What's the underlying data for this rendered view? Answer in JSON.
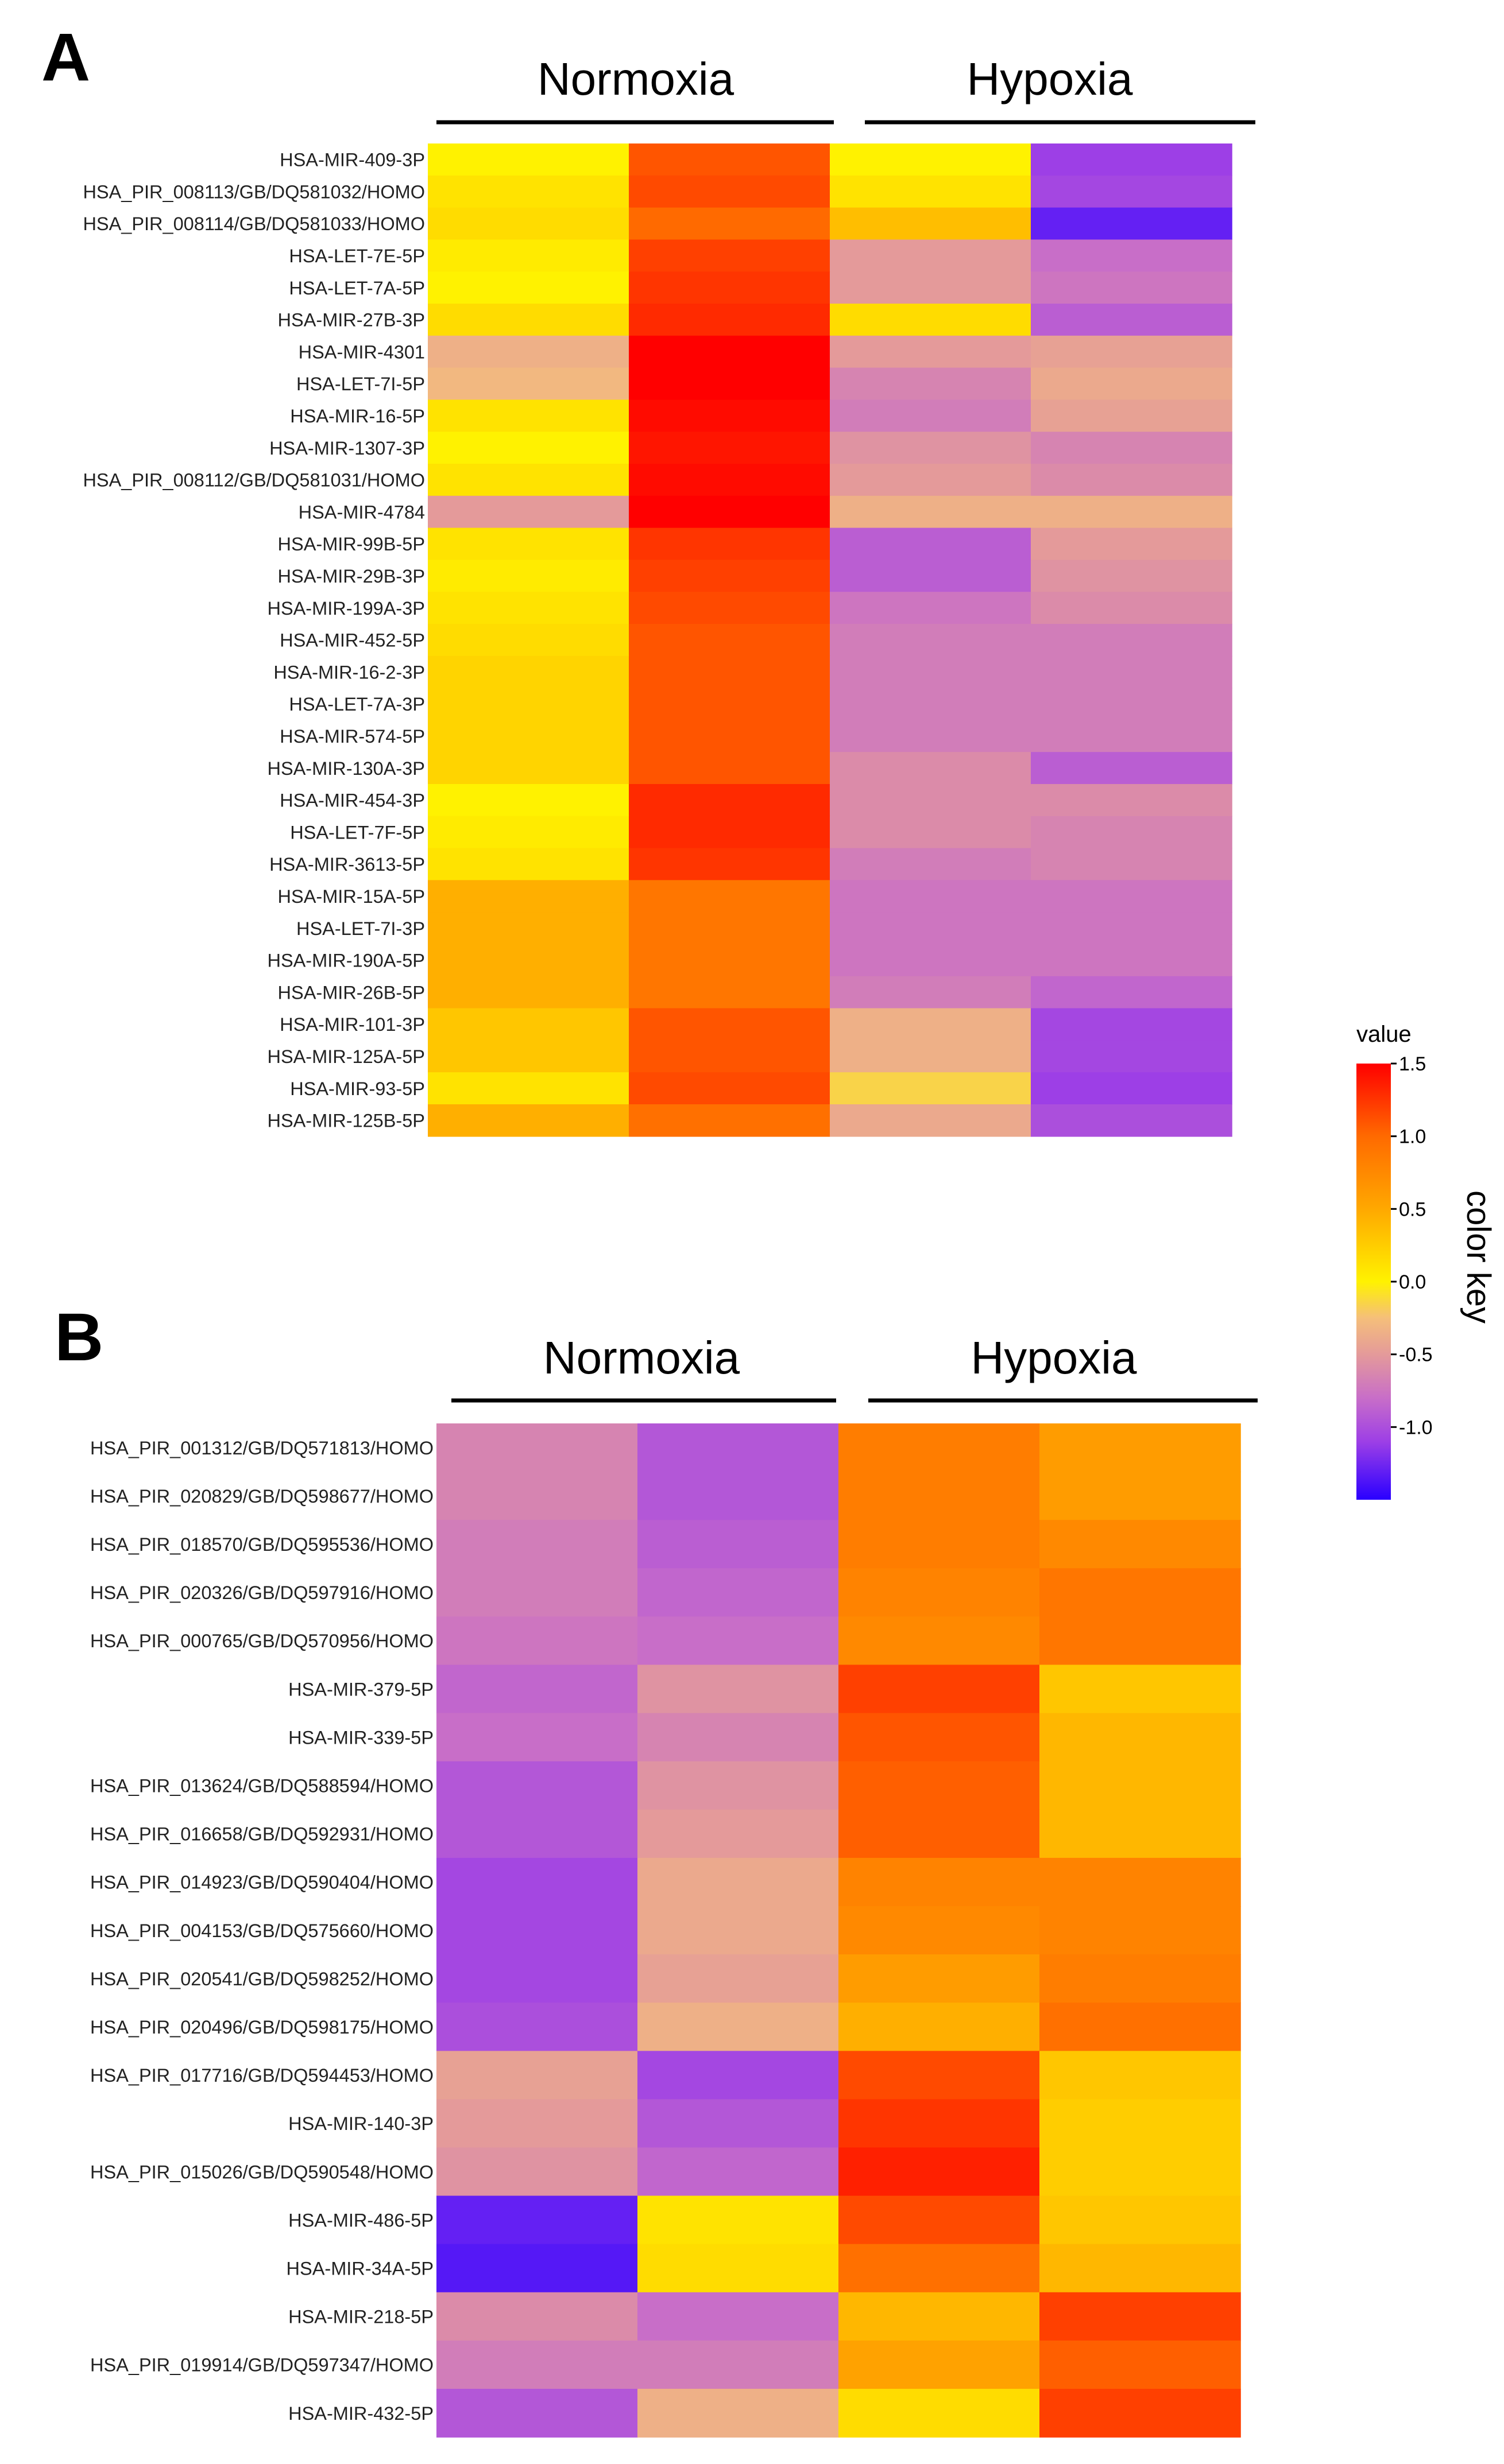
{
  "chart_data": [
    {
      "type": "heatmap",
      "panel": "A",
      "group_labels": [
        "Normoxia",
        "Hypoxia"
      ],
      "columns": 4,
      "rows": [
        "HSA-MIR-409-3P",
        "HSA_PIR_008113/GB/DQ581032/HOMO",
        "HSA_PIR_008114/GB/DQ581033/HOMO",
        "HSA-LET-7E-5P",
        "HSA-LET-7A-5P",
        "HSA-MIR-27B-3P",
        "HSA-MIR-4301",
        "HSA-LET-7I-5P",
        "HSA-MIR-16-5P",
        "HSA-MIR-1307-3P",
        "HSA_PIR_008112/GB/DQ581031/HOMO",
        "HSA-MIR-4784",
        "HSA-MIR-99B-5P",
        "HSA-MIR-29B-3P",
        "HSA-MIR-199A-3P",
        "HSA-MIR-452-5P",
        "HSA-MIR-16-2-3P",
        "HSA-LET-7A-3P",
        "HSA-MIR-574-5P",
        "HSA-MIR-130A-3P",
        "HSA-MIR-454-3P",
        "HSA-LET-7F-5P",
        "HSA-MIR-3613-5P",
        "HSA-MIR-15A-5P",
        "HSA-LET-7I-3P",
        "HSA-MIR-190A-5P",
        "HSA-MIR-26B-5P",
        "HSA-MIR-101-3P",
        "HSA-MIR-125A-5P",
        "HSA-MIR-93-5P",
        "HSA-MIR-125B-5P"
      ],
      "values": [
        [
          0.0,
          1.1,
          0.0,
          -1.1
        ],
        [
          0.1,
          1.15,
          0.1,
          -1.05
        ],
        [
          0.15,
          1.0,
          0.35,
          -1.3
        ],
        [
          0.05,
          1.2,
          -0.5,
          -0.8
        ],
        [
          0.0,
          1.25,
          -0.5,
          -0.75
        ],
        [
          0.15,
          1.3,
          0.15,
          -0.9
        ],
        [
          -0.35,
          1.5,
          -0.5,
          -0.45
        ],
        [
          -0.3,
          1.5,
          -0.65,
          -0.4
        ],
        [
          0.1,
          1.45,
          -0.7,
          -0.45
        ],
        [
          0.0,
          1.4,
          -0.55,
          -0.65
        ],
        [
          0.1,
          1.45,
          -0.5,
          -0.6
        ],
        [
          -0.5,
          1.5,
          -0.35,
          -0.35
        ],
        [
          0.1,
          1.25,
          -0.9,
          -0.5
        ],
        [
          0.05,
          1.2,
          -0.9,
          -0.55
        ],
        [
          0.1,
          1.15,
          -0.75,
          -0.6
        ],
        [
          0.15,
          1.1,
          -0.7,
          -0.7
        ],
        [
          0.2,
          1.1,
          -0.7,
          -0.7
        ],
        [
          0.2,
          1.1,
          -0.7,
          -0.7
        ],
        [
          0.2,
          1.1,
          -0.7,
          -0.7
        ],
        [
          0.2,
          1.1,
          -0.6,
          -0.9
        ],
        [
          0.0,
          1.3,
          -0.6,
          -0.6
        ],
        [
          0.05,
          1.3,
          -0.6,
          -0.65
        ],
        [
          0.1,
          1.25,
          -0.7,
          -0.65
        ],
        [
          0.45,
          0.9,
          -0.75,
          -0.75
        ],
        [
          0.45,
          0.9,
          -0.75,
          -0.75
        ],
        [
          0.45,
          0.9,
          -0.75,
          -0.75
        ],
        [
          0.45,
          0.9,
          -0.7,
          -0.85
        ],
        [
          0.3,
          1.1,
          -0.35,
          -1.05
        ],
        [
          0.3,
          1.1,
          -0.35,
          -1.05
        ],
        [
          0.1,
          1.15,
          -0.15,
          -1.1
        ],
        [
          0.45,
          0.95,
          -0.4,
          -1.0
        ]
      ]
    },
    {
      "type": "heatmap",
      "panel": "B",
      "group_labels": [
        "Normoxia",
        "Hypoxia"
      ],
      "columns": 4,
      "rows": [
        "HSA_PIR_001312/GB/DQ571813/HOMO",
        "HSA_PIR_020829/GB/DQ598677/HOMO",
        "HSA_PIR_018570/GB/DQ595536/HOMO",
        "HSA_PIR_020326/GB/DQ597916/HOMO",
        "HSA_PIR_000765/GB/DQ570956/HOMO",
        "HSA-MIR-379-5P",
        "HSA-MIR-339-5P",
        "HSA_PIR_013624/GB/DQ588594/HOMO",
        "HSA_PIR_016658/GB/DQ592931/HOMO",
        "HSA_PIR_014923/GB/DQ590404/HOMO",
        "HSA_PIR_004153/GB/DQ575660/HOMO",
        "HSA_PIR_020541/GB/DQ598252/HOMO",
        "HSA_PIR_020496/GB/DQ598175/HOMO",
        "HSA_PIR_017716/GB/DQ594453/HOMO",
        "HSA-MIR-140-3P",
        "HSA_PIR_015026/GB/DQ590548/HOMO",
        "HSA-MIR-486-5P",
        "HSA-MIR-34A-5P",
        "HSA-MIR-218-5P",
        "HSA_PIR_019914/GB/DQ597347/HOMO",
        "HSA-MIR-432-5P"
      ],
      "values": [
        [
          -0.65,
          -0.95,
          0.85,
          0.6
        ],
        [
          -0.65,
          -0.95,
          0.85,
          0.6
        ],
        [
          -0.7,
          -0.9,
          0.85,
          0.75
        ],
        [
          -0.7,
          -0.85,
          0.8,
          0.9
        ],
        [
          -0.75,
          -0.8,
          0.75,
          0.9
        ],
        [
          -0.85,
          -0.55,
          1.2,
          0.3
        ],
        [
          -0.8,
          -0.65,
          1.1,
          0.4
        ],
        [
          -0.95,
          -0.55,
          1.05,
          0.4
        ],
        [
          -0.95,
          -0.5,
          1.05,
          0.4
        ],
        [
          -1.05,
          -0.4,
          0.8,
          0.8
        ],
        [
          -1.05,
          -0.4,
          0.75,
          0.8
        ],
        [
          -1.05,
          -0.45,
          0.6,
          0.85
        ],
        [
          -1.0,
          -0.35,
          0.45,
          0.95
        ],
        [
          -0.45,
          -1.05,
          1.15,
          0.3
        ],
        [
          -0.5,
          -0.95,
          1.25,
          0.25
        ],
        [
          -0.55,
          -0.85,
          1.35,
          0.25
        ],
        [
          -1.3,
          0.1,
          1.15,
          0.3
        ],
        [
          -1.35,
          0.15,
          0.95,
          0.4
        ],
        [
          -0.6,
          -0.8,
          0.4,
          1.2
        ],
        [
          -0.7,
          -0.7,
          0.55,
          1.05
        ],
        [
          -0.95,
          -0.35,
          0.15,
          1.2
        ]
      ]
    }
  ],
  "panels": [
    {
      "letter": "A",
      "group_left": "Normoxia",
      "group_right": "Hypoxia"
    },
    {
      "letter": "B",
      "group_left": "Normoxia",
      "group_right": "Hypoxia"
    }
  ],
  "color_key": {
    "title": "value",
    "side_label": "color key",
    "min": -1.5,
    "max": 1.5,
    "ticks": [
      1.5,
      1.0,
      0.5,
      0.0,
      -0.5,
      -1.0
    ],
    "tick_labels": [
      "1.5",
      "1.0",
      "0.5",
      "0.0",
      "-0.5",
      "-1.0"
    ],
    "stops": [
      {
        "v": -1.5,
        "c": "#2a00ff"
      },
      {
        "v": -1.1,
        "c": "#9d3fe6"
      },
      {
        "v": -0.8,
        "c": "#c86ec8"
      },
      {
        "v": -0.5,
        "c": "#e49a9a"
      },
      {
        "v": -0.25,
        "c": "#f5bf7a"
      },
      {
        "v": 0.0,
        "c": "#fff200"
      },
      {
        "v": 0.5,
        "c": "#ffa800"
      },
      {
        "v": 1.0,
        "c": "#ff6a00"
      },
      {
        "v": 1.5,
        "c": "#ff0000"
      }
    ]
  }
}
